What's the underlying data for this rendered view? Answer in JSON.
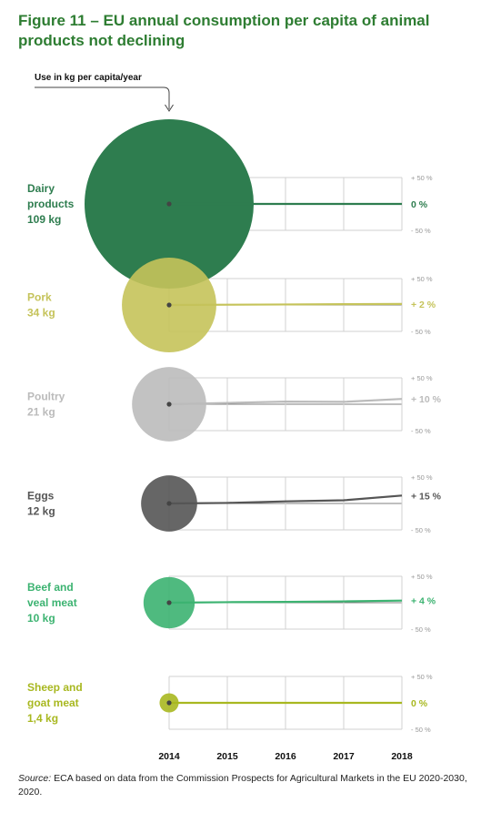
{
  "title": "Figure 11 – EU annual consumption per capita of animal products not declining",
  "unit_label": "Use in kg per capita/year",
  "source": {
    "label": "Source:",
    "text": "ECA based on data from the Commission Prospects for Agricultural Markets in the EU 2020-2030, 2020."
  },
  "chart_data": {
    "type": "line",
    "x": [
      2014,
      2015,
      2016,
      2017,
      2018
    ],
    "x_tick_labels": [
      "2014",
      "2015",
      "2016",
      "2017",
      "2018"
    ],
    "y_tick_labels": [
      "+ 50 %",
      "- 50 %"
    ],
    "ylim": [
      -50,
      50
    ],
    "grid": true,
    "series": [
      {
        "label_lines": [
          "Dairy",
          "products",
          "109 kg"
        ],
        "kg": 109,
        "values": [
          0,
          0,
          0,
          0,
          0
        ],
        "end_label": "0 %",
        "color": "#2e7d4f"
      },
      {
        "label_lines": [
          "Pork",
          "34 kg"
        ],
        "kg": 34,
        "values": [
          0,
          0.5,
          1,
          1.5,
          2
        ],
        "end_label": "+ 2 %",
        "color": "#c5c35a"
      },
      {
        "label_lines": [
          "Poultry",
          "21 kg"
        ],
        "kg": 21,
        "values": [
          0,
          2.5,
          5,
          4.5,
          10
        ],
        "end_label": "+ 10 %",
        "color": "#bbbbbb"
      },
      {
        "label_lines": [
          "Eggs",
          "12 kg"
        ],
        "kg": 12,
        "values": [
          0,
          1,
          4,
          6,
          15
        ],
        "end_label": "+ 15 %",
        "color": "#555555"
      },
      {
        "label_lines": [
          "Beef and",
          "veal meat",
          "10 kg"
        ],
        "kg": 10,
        "values": [
          0,
          1,
          1.5,
          2.5,
          4
        ],
        "end_label": "+ 4 %",
        "color": "#3cb371"
      },
      {
        "label_lines": [
          "Sheep and",
          "goat meat",
          "1,4 kg"
        ],
        "kg": 1.4,
        "values": [
          0,
          0,
          0,
          0,
          0
        ],
        "end_label": "0 %",
        "color": "#a8b820"
      }
    ]
  },
  "colors": {
    "title": "#2e7d32",
    "grid": "#d0d0d0",
    "axis_text": "#111111",
    "tick_text": "#999999"
  }
}
